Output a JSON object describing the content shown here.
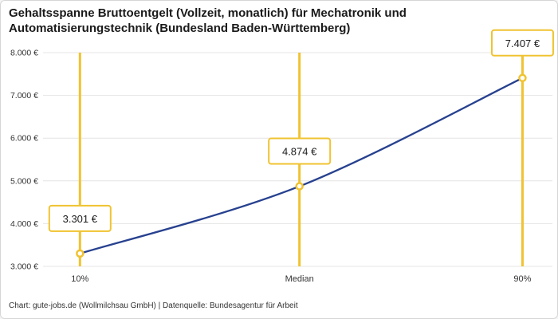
{
  "header": {
    "title": "Gehaltsspanne Bruttoentgelt (Vollzeit, monatlich) für Mechatronik und Automatisierungstechnik (Bundesland Baden-Württemberg)"
  },
  "footer": {
    "text": "Chart: gute-jobs.de (Wollmilchsau GmbH) | Datenquelle: Bundesagentur für Arbeit"
  },
  "chart_data": {
    "type": "line",
    "title": "Gehaltsspanne Bruttoentgelt (Vollzeit, monatlich) für Mechatronik und Automatisierungstechnik (Bundesland Baden-Württemberg)",
    "categories": [
      "10%",
      "Median",
      "90%"
    ],
    "values": [
      3301,
      4874,
      7407
    ],
    "value_labels": [
      "3.301 €",
      "4.874 €",
      "7.407 €"
    ],
    "ylim": [
      3000,
      8000
    ],
    "ytick_values": [
      3000,
      4000,
      5000,
      6000,
      7000,
      8000
    ],
    "ytick_labels": [
      "3.000 €",
      "4.000 €",
      "5.000 €",
      "6.000 €",
      "7.000 €",
      "8.000 €"
    ],
    "xlabel": "",
    "ylabel": "",
    "grid": true,
    "legend_position": "none",
    "colors": {
      "line": "#27418F",
      "marker_fill": "#FFFFFF",
      "marker_stroke": "#F0C330",
      "percentile_line": "#F0C330",
      "grid": "#E4E4E4",
      "tick_text": "#333333",
      "label_box_bg": "#FFFFFF",
      "label_box_border": "#F0C330",
      "label_text": "#1A1A1A"
    }
  }
}
